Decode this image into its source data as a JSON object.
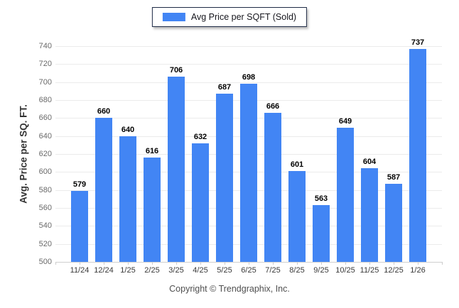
{
  "chart_data": {
    "type": "bar",
    "title": "",
    "categories": [
      "11/24",
      "12/24",
      "1/25",
      "2/25",
      "3/25",
      "4/25",
      "5/25",
      "6/25",
      "7/25",
      "8/25",
      "9/25",
      "10/25",
      "11/25",
      "12/25",
      "1/26"
    ],
    "series": [
      {
        "name": "Avg Price per SQFT (Sold)",
        "color": "#4285f4",
        "values": [
          579,
          660,
          640,
          616,
          706,
          632,
          687,
          698,
          666,
          601,
          563,
          649,
          604,
          587,
          737
        ]
      }
    ],
    "xlabel": "",
    "ylabel": "Avg. Price per SQ. FT.",
    "ylim": [
      500,
      740
    ],
    "ytick_step": 20,
    "grid": true,
    "legend_position": "top-center",
    "value_labels": true
  },
  "footer": {
    "copyright": "Copyright © Trendgraphix, Inc."
  }
}
